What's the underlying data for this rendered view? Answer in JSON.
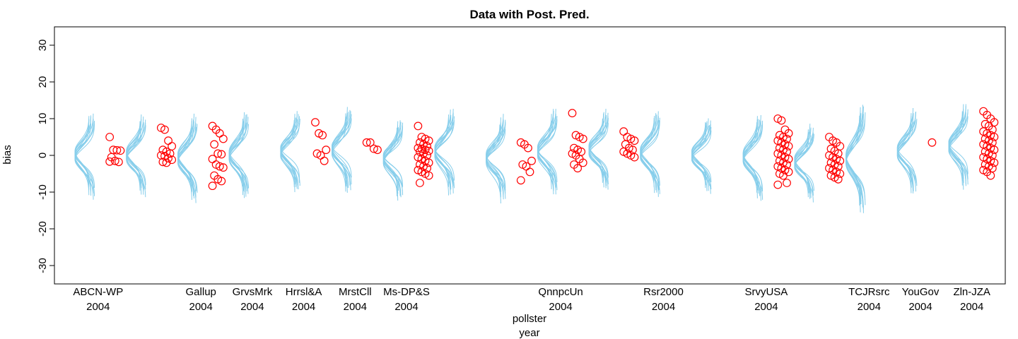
{
  "chart_data": {
    "type": "scatter",
    "title": "Data with Post. Pred.",
    "ylabel": "bias",
    "xlabel_lines": [
      "pollster",
      "year"
    ],
    "ylim": [
      -35,
      35
    ],
    "yticks": [
      -30,
      -20,
      -10,
      0,
      10,
      20,
      30
    ],
    "xlim": [
      0.15,
      18.65
    ],
    "grid": false,
    "colors": {
      "density": "#87CEEB",
      "points": "#FF0000",
      "axis": "#000000"
    },
    "groups": [
      {
        "x": 1,
        "label": [
          "ABCN-WP",
          "2004"
        ],
        "center": 0.0,
        "spread": 1.5,
        "points": [
          5,
          1.5,
          1.4,
          1.3,
          -0.5,
          -1.5,
          -1.8,
          -1.7
        ]
      },
      {
        "x": 2,
        "label": [],
        "center": 0.0,
        "spread": 1.4,
        "points": [
          7.5,
          7,
          4,
          2.5,
          1.5,
          1,
          0.5,
          0,
          -0.2,
          -0.8,
          -1.2,
          -1.8,
          -2
        ]
      },
      {
        "x": 3,
        "label": [
          "Gallup",
          "2004"
        ],
        "center": -0.8,
        "spread": 1.5,
        "points": [
          8,
          7,
          6,
          4.5,
          3,
          0.5,
          0.3,
          -1,
          -2.5,
          -3,
          -3.3,
          -5.5,
          -6.5,
          -7,
          -8.3
        ]
      },
      {
        "x": 4,
        "label": [
          "GrvsMrk",
          "2004"
        ],
        "center": 0.0,
        "spread": 1.5,
        "points": []
      },
      {
        "x": 5,
        "label": [
          "Hrrsl&A",
          "2004"
        ],
        "center": 1.0,
        "spread": 1.4,
        "points": [
          9,
          6,
          5.5,
          1.5,
          0.5,
          0,
          -1.5
        ]
      },
      {
        "x": 6,
        "label": [
          "MrstCll",
          "2004"
        ],
        "center": 1.5,
        "spread": 1.5,
        "points": [
          3.5,
          3.5,
          1.8,
          1.5
        ]
      },
      {
        "x": 7,
        "label": [
          "Ms-DP&S",
          "2004"
        ],
        "center": -1.0,
        "spread": 1.4,
        "points": [
          8,
          5,
          4.5,
          4,
          3.5,
          3,
          2.5,
          2,
          1.8,
          1.5,
          1.2,
          1,
          0.5,
          0,
          -0.5,
          -1,
          -1.5,
          -2,
          -2.5,
          -3,
          -3.5,
          -4,
          -4.5,
          -5,
          -5.5,
          -7.5
        ]
      },
      {
        "x": 8,
        "label": [],
        "center": 1.0,
        "spread": 1.5,
        "points": []
      },
      {
        "x": 9,
        "label": [],
        "center": -0.8,
        "spread": 1.5,
        "points": [
          3.5,
          3,
          2,
          -1.5,
          -2.5,
          -3,
          -4.5,
          -6.8
        ]
      },
      {
        "x": 10,
        "label": [
          "QnnpcUn",
          "2004"
        ],
        "center": 1.0,
        "spread": 1.5,
        "points": [
          11.5,
          5.5,
          5,
          4.5,
          2,
          1.5,
          1,
          0.5,
          0,
          -1,
          -2,
          -2.5,
          -3.5
        ]
      },
      {
        "x": 11,
        "label": [],
        "center": 1.5,
        "spread": 1.4,
        "points": [
          6.5,
          5,
          4.5,
          4,
          3,
          2,
          1.5,
          1,
          0.5,
          0,
          -0.5
        ]
      },
      {
        "x": 12,
        "label": [
          "Rsr2000",
          "2004"
        ],
        "center": 0.5,
        "spread": 1.5,
        "points": []
      },
      {
        "x": 13,
        "label": [],
        "center": 0.0,
        "spread": 1.3,
        "points": []
      },
      {
        "x": 14,
        "label": [
          "SrvyUSA",
          "2004"
        ],
        "center": -0.5,
        "spread": 1.5,
        "points": [
          10,
          9.5,
          7,
          6,
          5.5,
          5,
          4.5,
          4,
          3.5,
          3,
          2.5,
          2,
          1.5,
          1,
          0.5,
          0,
          -0.5,
          -1,
          -1.5,
          -2,
          -2.5,
          -3,
          -3.5,
          -4,
          -4.5,
          -5,
          -5.5,
          -7.5,
          -8
        ]
      },
      {
        "x": 15,
        "label": [],
        "center": -2.0,
        "spread": 1.3,
        "points": [
          5,
          4,
          3.5,
          2.5,
          1.8,
          1.2,
          0.5,
          0,
          -0.5,
          -1,
          -1.5,
          -2,
          -2.5,
          -3,
          -3.5,
          -4,
          -4.5,
          -5,
          -5.5,
          -6,
          -6.5
        ]
      },
      {
        "x": 16,
        "label": [
          "TCJRsrc",
          "2004"
        ],
        "center": -1.0,
        "spread": 1.9,
        "points": []
      },
      {
        "x": 17,
        "label": [
          "YouGov",
          "2004"
        ],
        "center": 1.0,
        "spread": 1.5,
        "points": [
          3.5
        ]
      },
      {
        "x": 18,
        "label": [
          "Zln-JZA",
          "2004"
        ],
        "center": 2.5,
        "spread": 1.5,
        "points": [
          12,
          11,
          10,
          9,
          8.5,
          8,
          7,
          6.5,
          6,
          5.5,
          5,
          4.5,
          4,
          3.5,
          3,
          2.5,
          2,
          1.5,
          1,
          0.5,
          0,
          -0.5,
          -1,
          -1.5,
          -2,
          -2.5,
          -3,
          -3.5,
          -4,
          -4.5,
          -5.5
        ]
      }
    ]
  }
}
